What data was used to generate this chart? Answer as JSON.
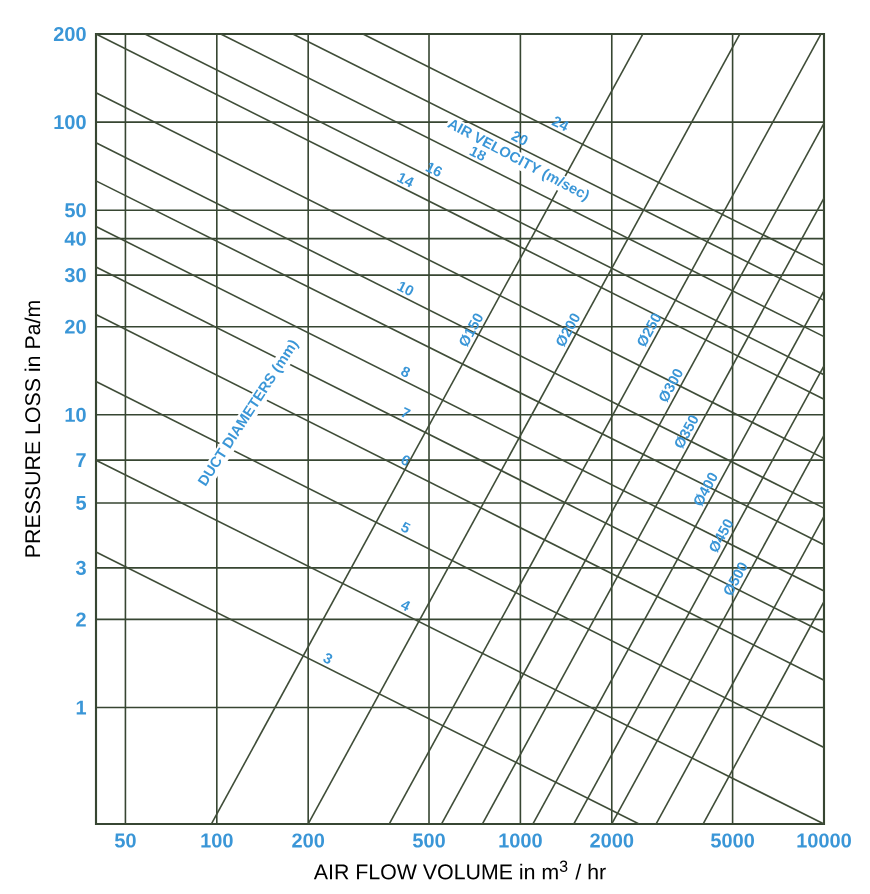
{
  "chart_data": {
    "type": "line",
    "xlabel": "AIR FLOW VOLUME in m$^{3}$ / hr",
    "ylabel": "PRESSURE LOSS in Pa/m",
    "annotations": [
      "DUCT DIAMETERS (mm)",
      "AIR VELOCITY (m/sec)"
    ],
    "log": "xy",
    "grid": true,
    "xlim": [
      40,
      10000
    ],
    "ylim": [
      0.4,
      200
    ],
    "xticks": [
      50,
      100,
      200,
      500,
      1000,
      2000,
      5000,
      10000
    ],
    "yticks": [
      1,
      2,
      3,
      5,
      7,
      10,
      20,
      30,
      40,
      50,
      100,
      200
    ],
    "series": [
      {
        "name": "3",
        "color": "#3f4d38",
        "x": [
          40,
          2460
        ],
        "values": [
          3.4,
          0.4
        ]
      },
      {
        "name": "4",
        "color": "#3f4d38",
        "x": [
          40,
          10000
        ],
        "values": [
          7,
          0.4
        ]
      },
      {
        "name": "5",
        "color": "#3f4d38",
        "x": [
          40,
          10000
        ],
        "values": [
          13,
          0.73
        ]
      },
      {
        "name": "6",
        "color": "#3f4d38",
        "x": [
          40,
          10000
        ],
        "values": [
          22,
          1.24
        ]
      },
      {
        "name": "7",
        "color": "#3f4d38",
        "x": [
          40,
          10000
        ],
        "values": [
          32,
          1.8
        ]
      },
      {
        "name": "8",
        "color": "#3f4d38",
        "x": [
          40,
          10000
        ],
        "values": [
          44,
          2.5
        ]
      },
      {
        "color": "#3f4d38",
        "x": [
          40,
          10000
        ],
        "values": [
          63,
          3.6
        ]
      },
      {
        "name": "10",
        "color": "#3f4d38",
        "x": [
          40,
          10000
        ],
        "values": [
          85,
          4.8
        ]
      },
      {
        "color": "#3f4d38",
        "x": [
          40,
          10000
        ],
        "values": [
          126,
          7.1
        ]
      },
      {
        "name": "14",
        "color": "#3f4d38",
        "x": [
          40,
          10000
        ],
        "values": [
          200,
          11.3
        ]
      },
      {
        "name": "16",
        "color": "#3f4d38",
        "x": [
          58,
          10000
        ],
        "values": [
          200,
          13.7
        ]
      },
      {
        "name": "18",
        "color": "#3f4d38",
        "x": [
          103,
          10000
        ],
        "values": [
          200,
          18.5
        ]
      },
      {
        "name": "20",
        "color": "#3f4d38",
        "x": [
          178,
          10000
        ],
        "values": [
          200,
          24.6
        ]
      },
      {
        "name": "24",
        "color": "#3f4d38",
        "x": [
          303,
          10000
        ],
        "values": [
          200,
          32.4
        ]
      },
      {
        "name": "Ø150",
        "color": "#3f4d38",
        "x": [
          96,
          2530
        ],
        "values": [
          0.4,
          200
        ]
      },
      {
        "name": "Ø200",
        "color": "#3f4d38",
        "x": [
          200,
          5280
        ],
        "values": [
          0.4,
          200
        ]
      },
      {
        "name": "Ø250",
        "color": "#3f4d38",
        "x": [
          370,
          9770
        ],
        "values": [
          0.4,
          200
        ]
      },
      {
        "name": "Ø300",
        "color": "#3f4d38",
        "x": [
          550,
          10000
        ],
        "values": [
          0.4,
          99
        ]
      },
      {
        "name": "Ø350",
        "color": "#3f4d38",
        "x": [
          750,
          10000
        ],
        "values": [
          0.4,
          55
        ]
      },
      {
        "name": "Ø400",
        "color": "#3f4d38",
        "x": [
          1100,
          10000
        ],
        "values": [
          0.4,
          26.5
        ]
      },
      {
        "name": "Ø450",
        "color": "#3f4d38",
        "x": [
          1500,
          10000
        ],
        "values": [
          0.4,
          14.7
        ]
      },
      {
        "name": "Ø500",
        "color": "#3f4d38",
        "x": [
          2000,
          10000
        ],
        "values": [
          0.4,
          8.5
        ]
      },
      {
        "color": "#3f4d38",
        "x": [
          2800,
          10000
        ],
        "values": [
          0.4,
          4.5
        ]
      },
      {
        "color": "#3f4d38",
        "x": [
          4000,
          10000
        ],
        "values": [
          0.4,
          2.3
        ]
      }
    ]
  }
}
